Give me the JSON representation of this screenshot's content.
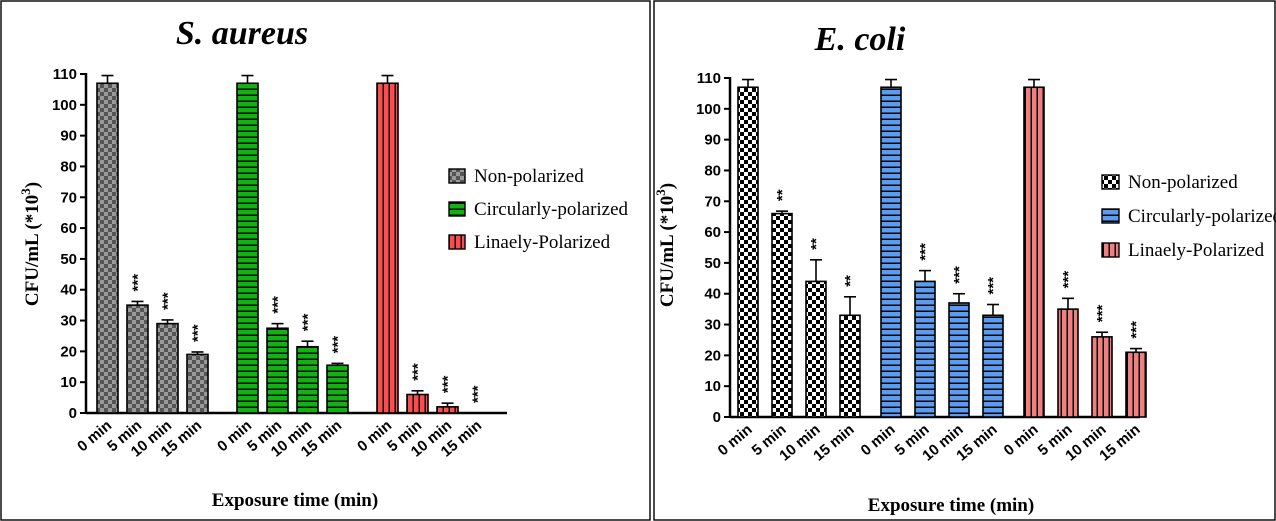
{
  "chart_data": [
    {
      "type": "bar",
      "title": "S. aureus",
      "xlabel": "Exposure time (min)",
      "ylabel": "CFU/mL (*10",
      "ylabel_sup": "3",
      "ylabel_close": ")",
      "ylim": [
        0,
        110
      ],
      "yticks": [
        0,
        10,
        20,
        30,
        40,
        50,
        60,
        70,
        80,
        90,
        100,
        110
      ],
      "categories": [
        "0 min",
        "5 min",
        "10 min",
        "15 min"
      ],
      "legend_position": "right",
      "series": [
        {
          "name": "Non-polarized",
          "color": "#808080",
          "pattern": "checker",
          "values": [
            107,
            35,
            29,
            19
          ],
          "errors": [
            2.5,
            1.2,
            1.2,
            0.8
          ],
          "significance": [
            "",
            "***",
            "***",
            "***"
          ]
        },
        {
          "name": "Circularly-polarized",
          "color": "#11b211",
          "pattern": "hlines",
          "values": [
            107,
            27.5,
            21.5,
            15.5
          ],
          "errors": [
            2.5,
            1.5,
            1.8,
            0.6
          ],
          "significance": [
            "",
            "***",
            "***",
            "***"
          ]
        },
        {
          "name": "Linaely-Polarized",
          "color": "#ff4d4d",
          "pattern": "vlines",
          "values": [
            107,
            6,
            2,
            0
          ],
          "errors": [
            2.5,
            1.2,
            1.2,
            0
          ],
          "significance": [
            "",
            "***",
            "***",
            "***"
          ]
        }
      ]
    },
    {
      "type": "bar",
      "title": "E. coli",
      "xlabel": "Exposure time (min)",
      "ylabel": "CFU/mL (*10",
      "ylabel_sup": "3",
      "ylabel_close": ")",
      "ylim": [
        0,
        110
      ],
      "yticks": [
        0,
        10,
        20,
        30,
        40,
        50,
        60,
        70,
        80,
        90,
        100,
        110
      ],
      "categories": [
        "0 min",
        "5 min",
        "10 min",
        "15 min"
      ],
      "legend_position": "right",
      "series": [
        {
          "name": "Non-polarized",
          "color": "#ffffff",
          "pattern": "checker-fine",
          "values": [
            107,
            66,
            44,
            33
          ],
          "errors": [
            2.5,
            0.8,
            7,
            6
          ],
          "significance": [
            "",
            "**",
            "**",
            "**"
          ]
        },
        {
          "name": "Circularly-polarized",
          "color": "#5b9bf0",
          "pattern": "hlines",
          "values": [
            107,
            44,
            37,
            33
          ],
          "errors": [
            2.5,
            3.5,
            3,
            3.5
          ],
          "significance": [
            "",
            "***",
            "***",
            "***"
          ]
        },
        {
          "name": "Linaely-Polarized",
          "color": "#f08080",
          "pattern": "vlines",
          "values": [
            107,
            35,
            26,
            21
          ],
          "errors": [
            2.5,
            3.5,
            1.5,
            1.2
          ],
          "significance": [
            "",
            "***",
            "***",
            "***"
          ]
        }
      ]
    }
  ]
}
